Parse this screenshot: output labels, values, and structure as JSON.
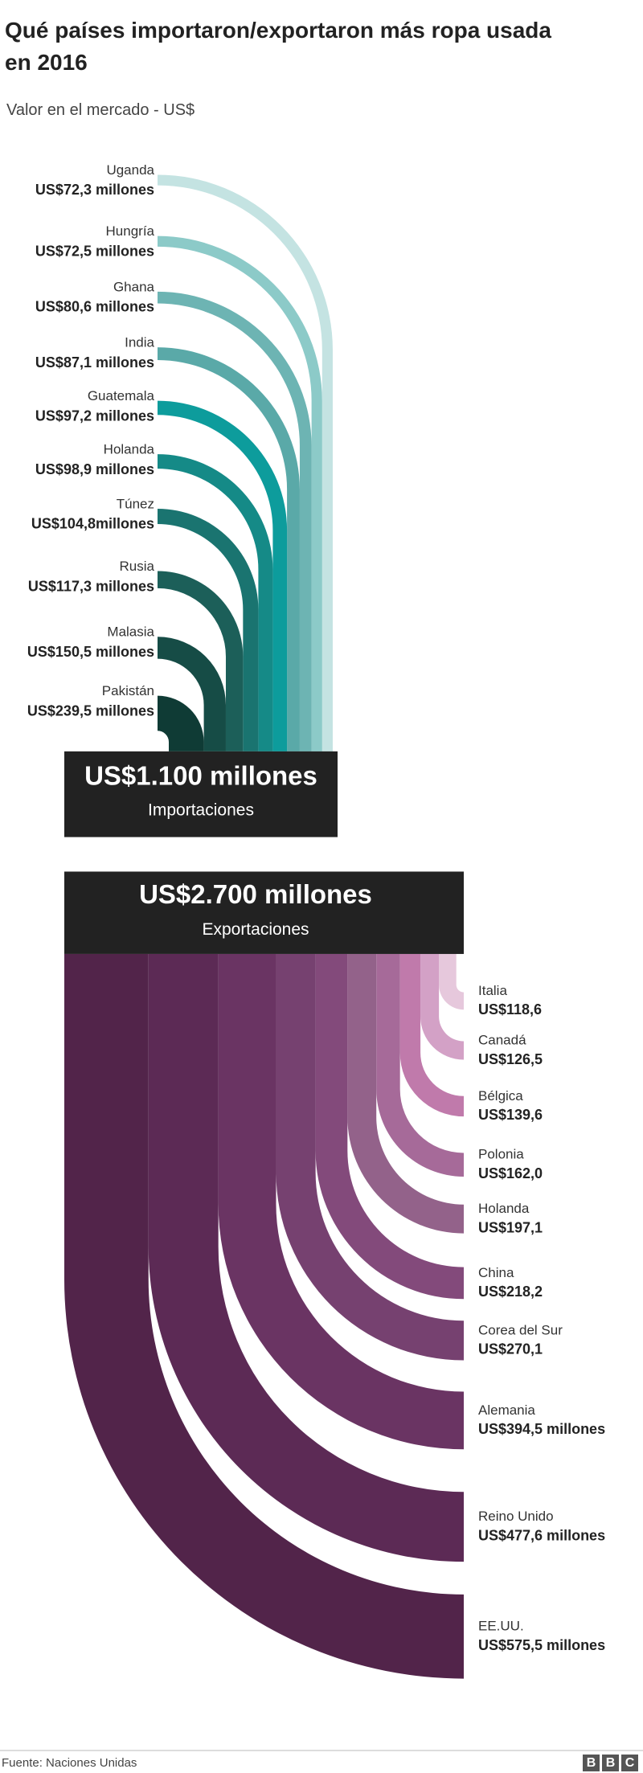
{
  "header": {
    "title": "Qué países importaron/exportaron más ropa usada en 2016",
    "subtitle": "Valor en el mercado - US$"
  },
  "chart_data": [
    {
      "type": "arc-in",
      "categories": [
        "Uganda",
        "Hungría",
        "Ghana",
        "India",
        "Guatemala",
        "Holanda",
        "Túnez",
        "Rusia",
        "Malasia",
        "Pakistán"
      ],
      "values": [
        72.3,
        72.5,
        80.6,
        87.1,
        97.2,
        98.9,
        104.8,
        117.3,
        150.5,
        239.5
      ],
      "value_labels": [
        "US$72,3 millones",
        "US$72,5 millones",
        "US$80,6 millones",
        "US$87,1 millones",
        "US$97,2 millones",
        "US$98,9 millones",
        "US$104,8millones",
        "US$117,3 millones",
        "US$150,5 millones",
        "US$239,5 millones"
      ],
      "colors": [
        "#c4e3e2",
        "#8ccac8",
        "#6db4b3",
        "#5aa9a8",
        "#0d9c9c",
        "#158a87",
        "#1a7470",
        "#1c5f59",
        "#164c46",
        "#0f3b35"
      ],
      "total": {
        "value": 1100,
        "label": "US$1.100 millones"
      },
      "caption": "Importaciones"
    },
    {
      "type": "arc-out",
      "categories": [
        "Italia",
        "Canadá",
        "Bélgica",
        "Polonia",
        "Holanda",
        "China",
        "Corea del Sur",
        "Alemania",
        "Reino Unido",
        "EE.UU."
      ],
      "values": [
        118.6,
        126.5,
        139.6,
        162.0,
        197.1,
        218.2,
        270.1,
        394.5,
        477.6,
        575.5
      ],
      "value_labels": [
        "US$118,6",
        "US$126,5",
        "US$139,6",
        "US$162,0",
        "US$197,1",
        "US$218,2",
        "US$270,1",
        "US$394,5 millones",
        "US$477,6 millones",
        "US$575,5 millones"
      ],
      "colors": [
        "#e6c8dc",
        "#d3a1c6",
        "#c07aab",
        "#a66a99",
        "#93628a",
        "#834a7b",
        "#764170",
        "#6a3463",
        "#5c2a55",
        "#52244a"
      ],
      "total": {
        "value": 2700,
        "label": "US$2.700 millones"
      },
      "caption": "Exportaciones"
    }
  ],
  "footer": {
    "source": "Fuente: Naciones Unidas",
    "logo": [
      "B",
      "B",
      "C"
    ]
  }
}
